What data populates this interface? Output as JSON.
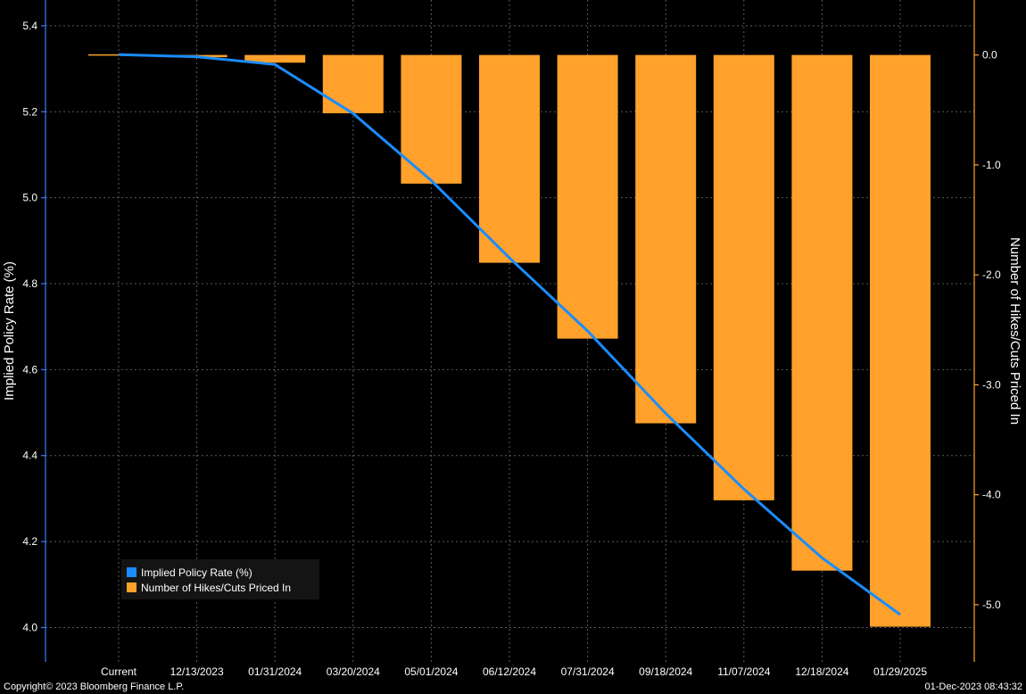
{
  "footer": {
    "copyright": "Copyright© 2023 Bloomberg Finance L.P.",
    "timestamp": "01-Dec-2023 08:43:32"
  },
  "colors": {
    "background": "#000000",
    "line": "#1a8cff",
    "bar": "#ffa12b",
    "left_axis": "#3d7bff",
    "right_axis": "#ffa12b",
    "grid": "#5a5a5a"
  },
  "chart_data": {
    "type": "bar+line",
    "categories": [
      "Current",
      "12/13/2023",
      "01/31/2024",
      "03/20/2024",
      "05/01/2024",
      "06/12/2024",
      "07/31/2024",
      "09/18/2024",
      "11/07/2024",
      "12/18/2024",
      "01/29/2025"
    ],
    "series": [
      {
        "name": "Implied Policy Rate (%)",
        "type": "line",
        "axis": "left",
        "values": [
          5.333,
          5.328,
          5.31,
          5.196,
          5.04,
          4.86,
          4.69,
          4.498,
          4.322,
          4.162,
          4.03
        ]
      },
      {
        "name": "Number of Hikes/Cuts Priced In",
        "type": "bar",
        "axis": "right",
        "values": [
          0.0,
          -0.02,
          -0.07,
          -0.53,
          -1.17,
          -1.89,
          -2.58,
          -3.35,
          -4.05,
          -4.69,
          -5.2
        ]
      }
    ],
    "ylabel_left": "Implied Policy Rate (%)",
    "ylabel_right": "Number of Hikes/Cuts Priced In",
    "ylim_left": [
      3.92,
      5.46
    ],
    "ylim_right": [
      -5.52,
      0.5
    ],
    "yticks_left": [
      "4.0",
      "4.2",
      "4.4",
      "4.6",
      "4.8",
      "5.0",
      "5.2",
      "5.4"
    ],
    "yticks_right": [
      "-5.0",
      "-4.0",
      "-3.0",
      "-2.0",
      "-1.0",
      "0.0"
    ],
    "legend_position": "bottom-left",
    "grid": true
  }
}
